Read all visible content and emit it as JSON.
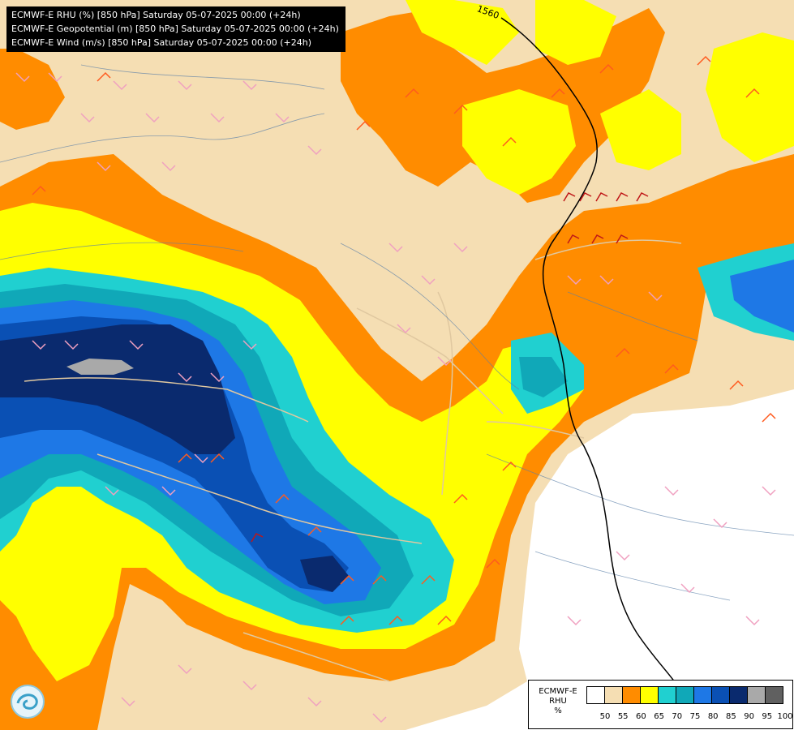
{
  "title_lines": [
    "ECMWF-E RHU (%) [850 hPa] Saturday 05-07-2025 00:00 (+24h)",
    "ECMWF-E Geopotential (m) [850 hPa] Saturday 05-07-2025 00:00 (+24h)",
    "ECMWF-E Wind (m/s) [850 hPa] Saturday 05-07-2025 00:00 (+24h)"
  ],
  "contour_label": "1560",
  "legend": {
    "model": "ECMWF-E",
    "variable": "RHU",
    "unit": "%",
    "ticks": [
      "50",
      "55",
      "60",
      "65",
      "70",
      "75",
      "80",
      "85",
      "90",
      "95",
      "100"
    ],
    "colors": [
      "#ffffff",
      "#f5deb3",
      "#ff8c00",
      "#ffff00",
      "#20d0d0",
      "#10a8b8",
      "#1e78e6",
      "#0a50b4",
      "#0a2a6e",
      "#a9a9a9",
      "#606060"
    ]
  },
  "logo": {
    "name": "wave-logo-icon"
  }
}
